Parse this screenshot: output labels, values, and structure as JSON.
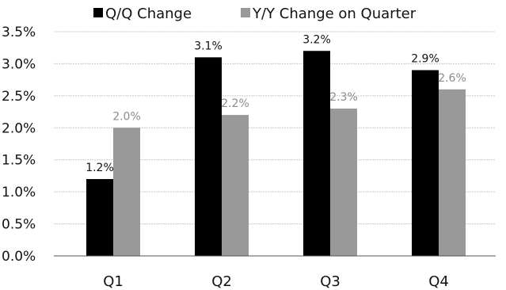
{
  "chart_data": {
    "type": "bar",
    "title": "",
    "xlabel": "",
    "ylabel": "",
    "categories": [
      "Q1",
      "Q2",
      "Q3",
      "Q4"
    ],
    "series": [
      {
        "name": "Q/Q Change",
        "color": "#000000",
        "values": [
          1.2,
          3.1,
          3.2,
          2.9
        ],
        "labels": [
          "1.2%",
          "3.1%",
          "3.2%",
          "2.9%"
        ],
        "label_color": "#111111"
      },
      {
        "name": "Y/Y Change on Quarter",
        "color": "#999999",
        "values": [
          2.0,
          2.2,
          2.3,
          2.6
        ],
        "labels": [
          "2.0%",
          "2.2%",
          "2.3%",
          "2.6%"
        ],
        "label_color": "#8c8c8c"
      }
    ],
    "ylim": [
      0,
      3.5
    ],
    "yticks": [
      "0.0%",
      "0.5%",
      "1.0%",
      "1.5%",
      "2.0%",
      "2.5%",
      "3.0%",
      "3.5%"
    ],
    "grid": true,
    "legend_position": "top"
  }
}
